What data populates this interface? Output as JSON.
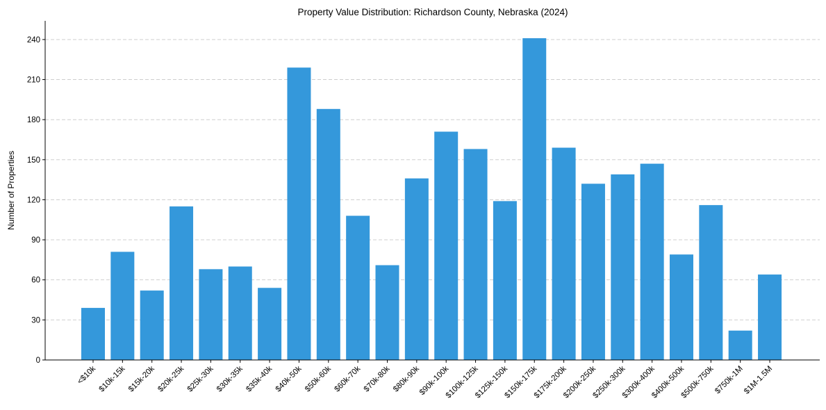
{
  "chart_data": {
    "type": "bar",
    "title": "Property Value Distribution: Richardson County, Nebraska (2024)",
    "xlabel": "",
    "ylabel": "Number of Properties",
    "categories": [
      "<$10k",
      "$10k-15k",
      "$15k-20k",
      "$20k-25k",
      "$25k-30k",
      "$30k-35k",
      "$35k-40k",
      "$40k-50k",
      "$50k-60k",
      "$60k-70k",
      "$70k-80k",
      "$80k-90k",
      "$90k-100k",
      "$100k-125k",
      "$125k-150k",
      "$150k-175k",
      "$175k-200k",
      "$200k-250k",
      "$250k-300k",
      "$300k-400k",
      "$400k-500k",
      "$500k-750k",
      "$750k-1M",
      "$1M-1.5M"
    ],
    "values": [
      39,
      81,
      52,
      115,
      68,
      70,
      54,
      219,
      188,
      108,
      71,
      136,
      171,
      158,
      119,
      241,
      159,
      132,
      139,
      147,
      79,
      116,
      22,
      64
    ],
    "ylim": [
      0,
      254
    ],
    "yticks": [
      0,
      30,
      60,
      90,
      120,
      150,
      180,
      210,
      240
    ],
    "grid": "horizontal dashed",
    "bar_color": "#3498db"
  }
}
